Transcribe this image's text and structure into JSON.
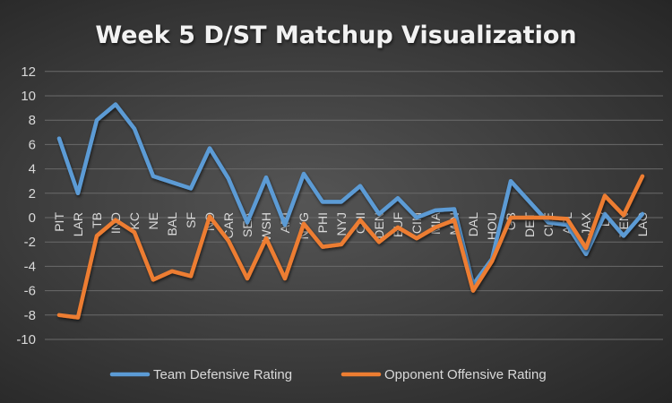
{
  "chart_data": {
    "type": "line",
    "title": "Week 5 D/ST Matchup Visualization",
    "xlabel": "",
    "ylabel": "",
    "ylim": [
      -10,
      12
    ],
    "yticks": [
      12,
      10,
      8,
      6,
      4,
      2,
      0,
      -2,
      -4,
      -6,
      -8,
      -10
    ],
    "grid": true,
    "legend_position": "bottom",
    "categories": [
      "PIT",
      "LAR",
      "TB",
      "IND",
      "KC",
      "NE",
      "BAL",
      "SF",
      "NO",
      "CAR",
      "SEA",
      "WSH",
      "ARI",
      "NYG",
      "PHI",
      "NYJ",
      "CHI",
      "DEN",
      "BUF",
      "CIN",
      "MIA",
      "MIN",
      "DAL",
      "HOU",
      "GB",
      "DET",
      "CLE",
      "ATL",
      "JAX",
      "LV",
      "TEN",
      "LAC"
    ],
    "series": [
      {
        "name": "Team Defensive Rating",
        "color": "#5b9bd5",
        "values": [
          6.5,
          2.0,
          8.0,
          9.3,
          7.3,
          3.4,
          2.9,
          2.4,
          5.7,
          3.2,
          -0.4,
          3.3,
          -0.6,
          3.6,
          1.3,
          1.3,
          2.6,
          0.3,
          1.6,
          0.0,
          0.6,
          0.7,
          -5.5,
          -3.4,
          3.0,
          1.3,
          -0.4,
          -0.6,
          -3.0,
          0.3,
          -1.5,
          0.3
        ]
      },
      {
        "name": "Opponent Offensive Rating",
        "color": "#ed7d31",
        "values": [
          -8.0,
          -8.2,
          -1.5,
          -0.2,
          -1.2,
          -5.1,
          -4.4,
          -4.8,
          0.1,
          -1.9,
          -5.0,
          -1.7,
          -5.0,
          -0.5,
          -2.4,
          -2.2,
          -0.2,
          -2.0,
          -0.8,
          -1.7,
          -0.8,
          -0.2,
          -6.0,
          -3.6,
          0.0,
          0.0,
          0.0,
          -0.1,
          -2.5,
          1.8,
          0.2,
          3.4
        ]
      }
    ]
  }
}
